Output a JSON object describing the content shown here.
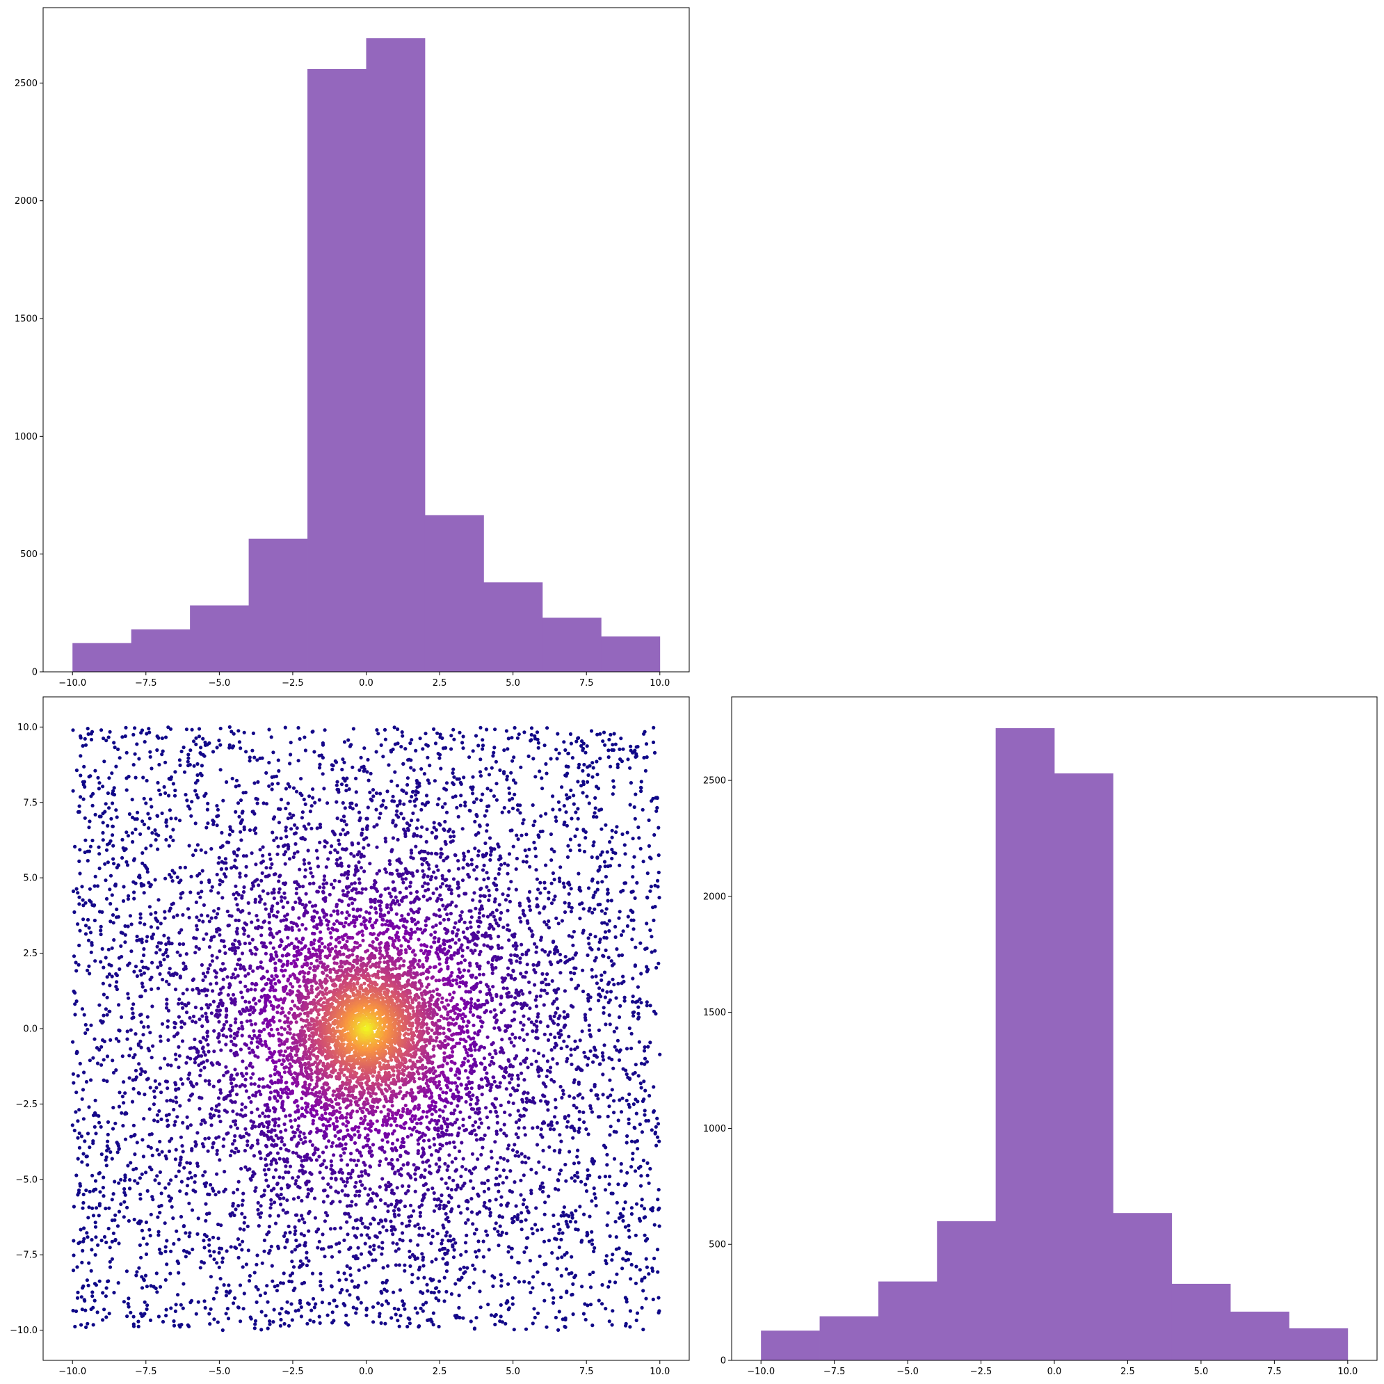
{
  "chart_data": [
    {
      "type": "bar",
      "position": "top-left",
      "title": "",
      "xlabel": "",
      "ylabel": "",
      "bin_edges": [
        -10.0,
        -8.0,
        -6.0,
        -4.0,
        -2.0,
        0.0,
        2.0,
        4.0,
        6.0,
        8.0,
        10.0
      ],
      "values": [
        122,
        180,
        282,
        565,
        2560,
        2690,
        665,
        380,
        230,
        150
      ],
      "color": "#9467bd",
      "xlim": [
        -11.0,
        11.0
      ],
      "ylim": [
        0,
        2820
      ],
      "xticks": [
        -10.0,
        -7.5,
        -5.0,
        -2.5,
        0.0,
        2.5,
        5.0,
        7.5,
        10.0
      ],
      "xtick_labels": [
        "−10.0",
        "−7.5",
        "−5.0",
        "−2.5",
        "0.0",
        "2.5",
        "5.0",
        "7.5",
        "10.0"
      ],
      "yticks": [
        0,
        500,
        1000,
        1500,
        2000,
        2500
      ],
      "ytick_labels": [
        "0",
        "500",
        "1000",
        "1500",
        "2000",
        "2500"
      ]
    },
    {
      "type": "scatter",
      "position": "bottom-left",
      "title": "",
      "xlabel": "",
      "ylabel": "",
      "colormap": "plasma",
      "colormap_stops": [
        "#0d0887",
        "#7e03a8",
        "#cc4778",
        "#f89540",
        "#f0f921"
      ],
      "x_range": [
        -10,
        10
      ],
      "y_range": [
        -10,
        10
      ],
      "point_count": 10000,
      "center": [
        0,
        0
      ],
      "xlim": [
        -11.0,
        11.0
      ],
      "ylim": [
        -11.0,
        11.0
      ],
      "xticks": [
        -10.0,
        -7.5,
        -5.0,
        -2.5,
        0.0,
        2.5,
        5.0,
        7.5,
        10.0
      ],
      "xtick_labels": [
        "−10.0",
        "−7.5",
        "−5.0",
        "−2.5",
        "0.0",
        "2.5",
        "5.0",
        "7.5",
        "10.0"
      ],
      "yticks": [
        -10.0,
        -7.5,
        -5.0,
        -2.5,
        0.0,
        2.5,
        5.0,
        7.5,
        10.0
      ],
      "ytick_labels": [
        "−10.0",
        "−7.5",
        "−5.0",
        "−2.5",
        "0.0",
        "2.5",
        "5.0",
        "7.5",
        "10.0"
      ]
    },
    {
      "type": "bar",
      "position": "bottom-right",
      "title": "",
      "xlabel": "",
      "ylabel": "",
      "bin_edges": [
        -10.0,
        -8.0,
        -6.0,
        -4.0,
        -2.0,
        0.0,
        2.0,
        4.0,
        6.0,
        8.0,
        10.0
      ],
      "values": [
        128,
        190,
        340,
        600,
        2725,
        2530,
        635,
        330,
        210,
        138
      ],
      "color": "#9467bd",
      "xlim": [
        -11.0,
        11.0
      ],
      "ylim": [
        0,
        2860
      ],
      "xticks": [
        -10.0,
        -7.5,
        -5.0,
        -2.5,
        0.0,
        2.5,
        5.0,
        7.5,
        10.0
      ],
      "xtick_labels": [
        "−10.0",
        "−7.5",
        "−5.0",
        "−2.5",
        "0.0",
        "2.5",
        "5.0",
        "7.5",
        "10.0"
      ],
      "yticks": [
        0,
        500,
        1000,
        1500,
        2000,
        2500
      ],
      "ytick_labels": [
        "0",
        "500",
        "1000",
        "1500",
        "2000",
        "2500"
      ]
    }
  ]
}
